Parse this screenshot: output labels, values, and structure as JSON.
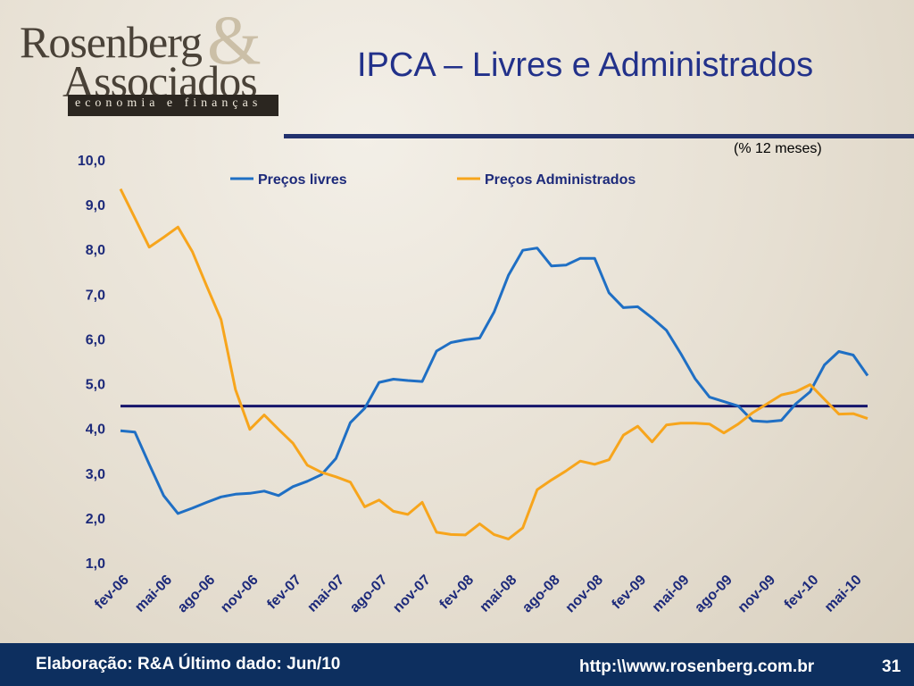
{
  "logo": {
    "line1": "Rosenberg",
    "ampersand": "&",
    "line2": "Associados",
    "tagline": "economia e finanças"
  },
  "slide": {
    "title": "IPCA – Livres e Administrados",
    "units": "(% 12 meses)"
  },
  "footer": {
    "source": "Elaboração: R&A   Último dado: Jun/10",
    "url": "http:\\\\www.rosenberg.com.br",
    "page": "31"
  },
  "colors": {
    "title": "#22318a",
    "footer_bg": "#0d2f5f",
    "series_livres": "#1f6fc4",
    "series_admin": "#f7a51c",
    "reference_line": "#15156b"
  },
  "chart_data": {
    "type": "line",
    "title": "IPCA – Livres e Administrados",
    "ylabel": "(% 12 meses)",
    "ylim": [
      1.0,
      10.0
    ],
    "yticks": [
      "10,0",
      "9,0",
      "8,0",
      "7,0",
      "6,0",
      "5,0",
      "4,0",
      "3,0",
      "2,0",
      "1,0"
    ],
    "x": [
      "fev-06",
      "mar-06",
      "abr-06",
      "mai-06",
      "jun-06",
      "jul-06",
      "ago-06",
      "set-06",
      "out-06",
      "nov-06",
      "dez-06",
      "jan-07",
      "fev-07",
      "mar-07",
      "abr-07",
      "mai-07",
      "jun-07",
      "jul-07",
      "ago-07",
      "set-07",
      "out-07",
      "nov-07",
      "dez-07",
      "jan-08",
      "fev-08",
      "mar-08",
      "abr-08",
      "mai-08",
      "jun-08",
      "jul-08",
      "ago-08",
      "set-08",
      "out-08",
      "nov-08",
      "dez-08",
      "jan-09",
      "fev-09",
      "mar-09",
      "abr-09",
      "mai-09",
      "jun-09",
      "jul-09",
      "ago-09",
      "set-09",
      "out-09",
      "nov-09",
      "dez-09",
      "jan-10",
      "fev-10",
      "mar-10",
      "abr-10",
      "mai-10",
      "jun-10"
    ],
    "xtick_labels": [
      "fev-06",
      "mai-06",
      "ago-06",
      "nov-06",
      "fev-07",
      "mai-07",
      "ago-07",
      "nov-07",
      "fev-08",
      "mai-08",
      "ago-08",
      "nov-08",
      "fev-09",
      "mai-09",
      "ago-09",
      "nov-09",
      "fev-10",
      "mai-10"
    ],
    "series": [
      {
        "name": "Preços livres",
        "color": "#1f6fc4",
        "values": [
          3.95,
          3.92,
          3.2,
          2.5,
          2.1,
          2.22,
          2.35,
          2.47,
          2.53,
          2.55,
          2.6,
          2.5,
          2.7,
          2.82,
          2.97,
          3.33,
          4.13,
          4.45,
          5.03,
          5.1,
          5.07,
          5.05,
          5.73,
          5.92,
          5.98,
          6.02,
          6.6,
          7.42,
          7.98,
          8.03,
          7.63,
          7.65,
          7.8,
          7.8,
          7.03,
          6.7,
          6.72,
          6.47,
          6.19,
          5.67,
          5.11,
          4.7,
          4.6,
          4.5,
          4.17,
          4.15,
          4.18,
          4.55,
          4.82,
          5.42,
          5.72,
          5.64,
          5.18
        ]
      },
      {
        "name": "Preços Administrados",
        "color": "#f7a51c",
        "values": [
          9.35,
          8.7,
          8.05,
          8.27,
          8.5,
          7.95,
          7.18,
          6.43,
          4.87,
          3.98,
          4.3,
          3.98,
          3.67,
          3.18,
          3.02,
          2.92,
          2.8,
          2.25,
          2.4,
          2.15,
          2.08,
          2.35,
          1.68,
          1.63,
          1.62,
          1.87,
          1.63,
          1.53,
          1.78,
          2.63,
          2.85,
          3.05,
          3.27,
          3.2,
          3.3,
          3.85,
          4.05,
          3.7,
          4.08,
          4.12,
          4.12,
          4.1,
          3.9,
          4.1,
          4.35,
          4.55,
          4.75,
          4.82,
          4.98,
          4.65,
          4.32,
          4.33,
          4.22
        ]
      }
    ],
    "reference_line": 4.5,
    "legend_position": "top"
  }
}
